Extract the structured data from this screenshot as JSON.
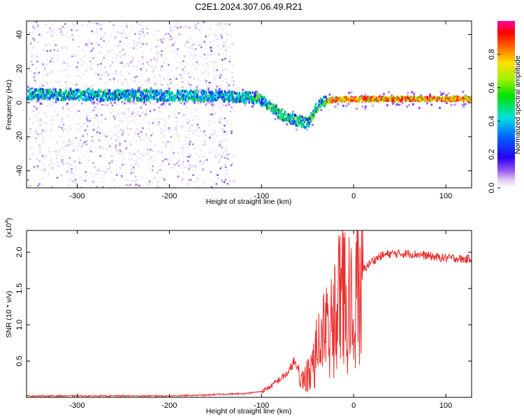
{
  "title": "C2E1.2024.307.06.49.R21",
  "chart_data": [
    {
      "type": "heatmap",
      "xlabel": "Height of straight line (km)",
      "ylabel": "Frequency (Hz)",
      "xlim": [
        -355,
        128
      ],
      "ylim": [
        -50,
        48
      ],
      "xticks": [
        -300,
        -200,
        -100,
        0,
        100
      ],
      "xtick_labels": [
        "-300",
        "-200",
        "-100",
        "0",
        "100"
      ],
      "yticks": [
        -40,
        -20,
        0,
        20,
        40
      ],
      "ytick_labels": [
        "-40",
        "-20",
        "0",
        "20",
        "40"
      ],
      "ridge": {
        "x": [
          -355,
          -300,
          -250,
          -200,
          -150,
          -130,
          -110,
          -100,
          -90,
          -80,
          -70,
          -60,
          -50,
          -40,
          -35,
          -30,
          -20,
          0,
          50,
          128
        ],
        "y": [
          5,
          4.5,
          4.5,
          4,
          4,
          3.5,
          3,
          1,
          -3,
          -7,
          -9,
          -11,
          -12,
          -2,
          0,
          1,
          1.5,
          2,
          2,
          2
        ]
      },
      "colorbar": {
        "label": "Normalized spectral amplitude",
        "range": [
          0,
          1
        ],
        "ticks": [
          0.0,
          0.2,
          0.4,
          0.6,
          0.8
        ],
        "tick_labels": [
          "0.0",
          "0.2",
          "0.4",
          "0.6",
          "0.8"
        ]
      }
    },
    {
      "type": "line",
      "xlabel": "Height of straight line (km)",
      "ylabel": "SNR (10 * v/v)",
      "multiplier": "(x10",
      "multiplier_exp": "4",
      "multiplier_close": ")",
      "xlim": [
        -355,
        128
      ],
      "ylim": [
        0,
        2.3
      ],
      "xticks": [
        -300,
        -200,
        -100,
        0,
        100
      ],
      "xtick_labels": [
        "-300",
        "-200",
        "-100",
        "0",
        "100"
      ],
      "yticks": [
        0.5,
        1.0,
        1.5,
        2.0
      ],
      "ytick_labels": [
        "0.5",
        "1.0",
        "1.5",
        "2.0"
      ],
      "series": [
        {
          "color": "#e8302e",
          "x": [
            -355,
            -300,
            -250,
            -200,
            -160,
            -150,
            -120,
            -100,
            -90,
            -80,
            -70,
            -65,
            -60,
            -55,
            -50,
            -45,
            -40,
            -35,
            -30,
            -25,
            -20,
            -15,
            -10,
            -5,
            0,
            5,
            10,
            20,
            30,
            40,
            50,
            60,
            70,
            80,
            90,
            100,
            110,
            120,
            128
          ],
          "y": [
            0.02,
            0.02,
            0.02,
            0.02,
            0.03,
            0.04,
            0.05,
            0.08,
            0.15,
            0.25,
            0.35,
            0.5,
            0.35,
            0.25,
            0.35,
            0.5,
            0.75,
            0.85,
            1.2,
            1.35,
            1.3,
            1.5,
            1.55,
            1.5,
            1.55,
            1.65,
            1.75,
            1.88,
            1.95,
            1.98,
            1.98,
            1.98,
            1.97,
            1.95,
            1.93,
            1.92,
            1.92,
            1.9,
            1.92
          ]
        }
      ]
    }
  ]
}
